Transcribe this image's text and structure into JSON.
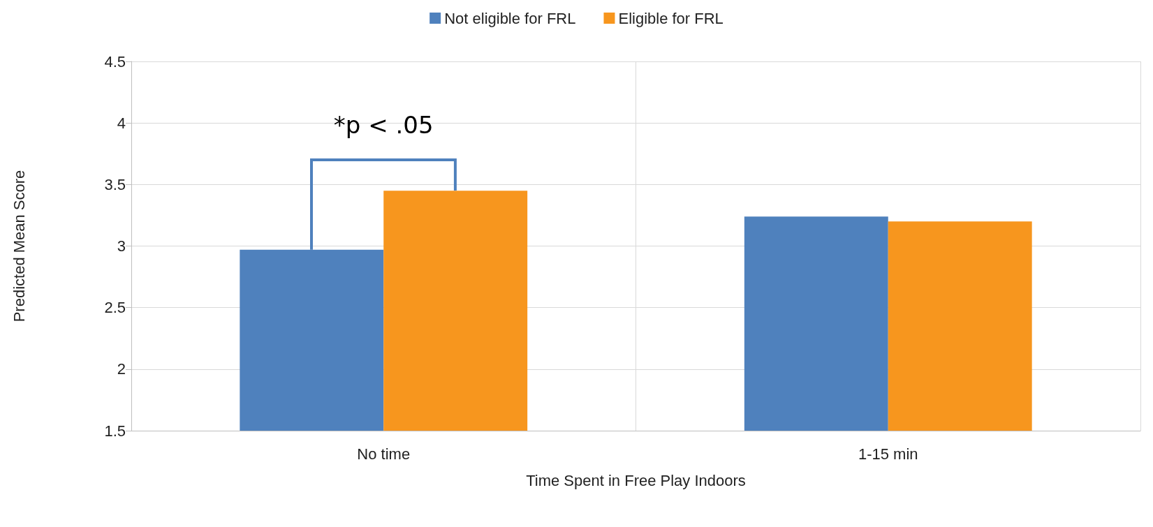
{
  "chart_data": {
    "type": "bar",
    "xlabel": "Time Spent in Free Play Indoors",
    "ylabel": "Predicted Mean Score",
    "categories": [
      "No time",
      "1-15 min"
    ],
    "series": [
      {
        "name": "Not eligible for FRL",
        "color": "#4f81bd",
        "values": [
          2.97,
          3.24
        ]
      },
      {
        "name": "Eligible for FRL",
        "color": "#f7961e",
        "values": [
          3.45,
          3.2
        ]
      }
    ],
    "ylim": [
      1.5,
      4.5
    ],
    "yticks": [
      1.5,
      2,
      2.5,
      3,
      3.5,
      4,
      4.5
    ],
    "grid": true,
    "legend": "top",
    "annotations": [
      "*p < .05"
    ]
  }
}
